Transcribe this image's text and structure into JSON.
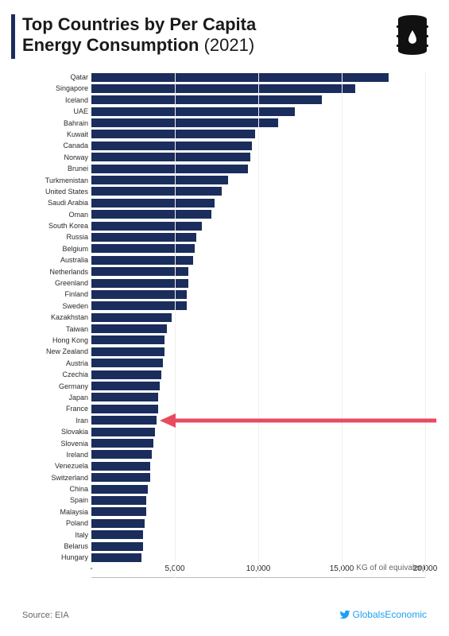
{
  "title": {
    "line1": "Top Countries by Per Capita",
    "line2_bold": "Energy Consumption",
    "line2_year": "(2021)"
  },
  "chart": {
    "type": "horizontal-bar",
    "bar_color": "#1a2d5c",
    "background_color": "#ffffff",
    "label_fontsize": 9,
    "xlim": [
      0,
      20000
    ],
    "xticks": [
      "-",
      "5,000",
      "10,000",
      "15,000",
      "20,000"
    ],
    "xtick_positions": [
      0,
      5000,
      10000,
      15000,
      20000
    ],
    "unit_label": "KG of oil equivalent",
    "highlight_index": 30,
    "arrow_color": "#e84a5f",
    "countries": [
      {
        "name": "Qatar",
        "value": 17800
      },
      {
        "name": "Singapore",
        "value": 15800
      },
      {
        "name": "Iceland",
        "value": 13800
      },
      {
        "name": "UAE",
        "value": 12200
      },
      {
        "name": "Bahrain",
        "value": 11200
      },
      {
        "name": "Kuwait",
        "value": 9800
      },
      {
        "name": "Canada",
        "value": 9600
      },
      {
        "name": "Norway",
        "value": 9500
      },
      {
        "name": "Brunei",
        "value": 9400
      },
      {
        "name": "Turkmenistan",
        "value": 8200
      },
      {
        "name": "United States",
        "value": 7800
      },
      {
        "name": "Saudi Arabia",
        "value": 7400
      },
      {
        "name": "Oman",
        "value": 7200
      },
      {
        "name": "South Korea",
        "value": 6600
      },
      {
        "name": "Russia",
        "value": 6300
      },
      {
        "name": "Belgium",
        "value": 6200
      },
      {
        "name": "Australia",
        "value": 6100
      },
      {
        "name": "Netherlands",
        "value": 5800
      },
      {
        "name": "Greenland",
        "value": 5800
      },
      {
        "name": "Finland",
        "value": 5700
      },
      {
        "name": "Sweden",
        "value": 5700
      },
      {
        "name": "Kazakhstan",
        "value": 4800
      },
      {
        "name": "Taiwan",
        "value": 4500
      },
      {
        "name": "Hong Kong",
        "value": 4400
      },
      {
        "name": "New Zealand",
        "value": 4400
      },
      {
        "name": "Austria",
        "value": 4300
      },
      {
        "name": "Czechia",
        "value": 4200
      },
      {
        "name": "Germany",
        "value": 4100
      },
      {
        "name": "Japan",
        "value": 4000
      },
      {
        "name": "France",
        "value": 4000
      },
      {
        "name": "Iran",
        "value": 3900
      },
      {
        "name": "Slovakia",
        "value": 3800
      },
      {
        "name": "Slovenia",
        "value": 3700
      },
      {
        "name": "Ireland",
        "value": 3600
      },
      {
        "name": "Venezuela",
        "value": 3500
      },
      {
        "name": "Switzerland",
        "value": 3500
      },
      {
        "name": "China",
        "value": 3400
      },
      {
        "name": "Spain",
        "value": 3300
      },
      {
        "name": "Malaysia",
        "value": 3300
      },
      {
        "name": "Poland",
        "value": 3200
      },
      {
        "name": "Italy",
        "value": 3100
      },
      {
        "name": "Belarus",
        "value": 3100
      },
      {
        "name": "Hungary",
        "value": 3000
      }
    ]
  },
  "source": "Source: EIA",
  "twitter_handle": "GlobalsEconomic"
}
